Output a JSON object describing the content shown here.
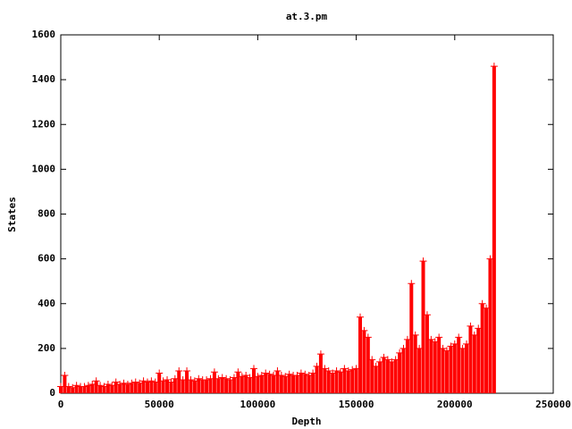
{
  "chart_data": {
    "type": "impulse-points",
    "title": "at.3.pm",
    "x_label": "Depth",
    "y_label": "States",
    "x": [
      0,
      2000,
      4000,
      6000,
      8000,
      10000,
      12000,
      14000,
      16000,
      18000,
      20000,
      22000,
      24000,
      26000,
      28000,
      30000,
      32000,
      34000,
      36000,
      38000,
      40000,
      42000,
      44000,
      46000,
      48000,
      50000,
      52000,
      54000,
      56000,
      58000,
      60000,
      62000,
      64000,
      66000,
      68000,
      70000,
      72000,
      74000,
      76000,
      78000,
      80000,
      82000,
      84000,
      86000,
      88000,
      90000,
      92000,
      94000,
      96000,
      98000,
      100000,
      102000,
      104000,
      106000,
      108000,
      110000,
      112000,
      114000,
      116000,
      118000,
      120000,
      122000,
      124000,
      126000,
      128000,
      130000,
      132000,
      134000,
      136000,
      138000,
      140000,
      142000,
      144000,
      146000,
      148000,
      150000,
      152000,
      154000,
      156000,
      158000,
      160000,
      162000,
      164000,
      166000,
      168000,
      170000,
      172000,
      174000,
      176000,
      178000,
      180000,
      182000,
      184000,
      186000,
      188000,
      190000,
      192000,
      194000,
      196000,
      198000,
      200000,
      202000,
      204000,
      206000,
      208000,
      210000,
      212000,
      214000,
      216000,
      218000,
      220000
    ],
    "series": [
      {
        "color": "#ff0000",
        "values": [
          30,
          80,
          30,
          25,
          35,
          30,
          30,
          35,
          40,
          55,
          35,
          30,
          40,
          35,
          50,
          40,
          45,
          40,
          45,
          50,
          45,
          55,
          50,
          55,
          50,
          90,
          55,
          60,
          50,
          65,
          100,
          60,
          100,
          60,
          55,
          65,
          60,
          60,
          65,
          95,
          65,
          70,
          65,
          60,
          70,
          95,
          75,
          80,
          70,
          110,
          75,
          80,
          90,
          85,
          80,
          100,
          80,
          75,
          85,
          80,
          80,
          90,
          85,
          80,
          90,
          120,
          175,
          110,
          100,
          90,
          100,
          95,
          110,
          100,
          105,
          110,
          340,
          280,
          250,
          150,
          120,
          140,
          160,
          150,
          140,
          150,
          180,
          200,
          240,
          490,
          260,
          200,
          590,
          350,
          240,
          230,
          250,
          200,
          190,
          210,
          220,
          250,
          200,
          220,
          300,
          260,
          290,
          400,
          380,
          600,
          1460
        ]
      }
    ],
    "xlim": [
      0,
      250000
    ],
    "ylim": [
      0,
      1600
    ],
    "xticks": [
      0,
      50000,
      100000,
      150000,
      200000,
      250000
    ],
    "yticks": [
      0,
      200,
      400,
      600,
      800,
      1000,
      1200,
      1400,
      1600
    ]
  }
}
